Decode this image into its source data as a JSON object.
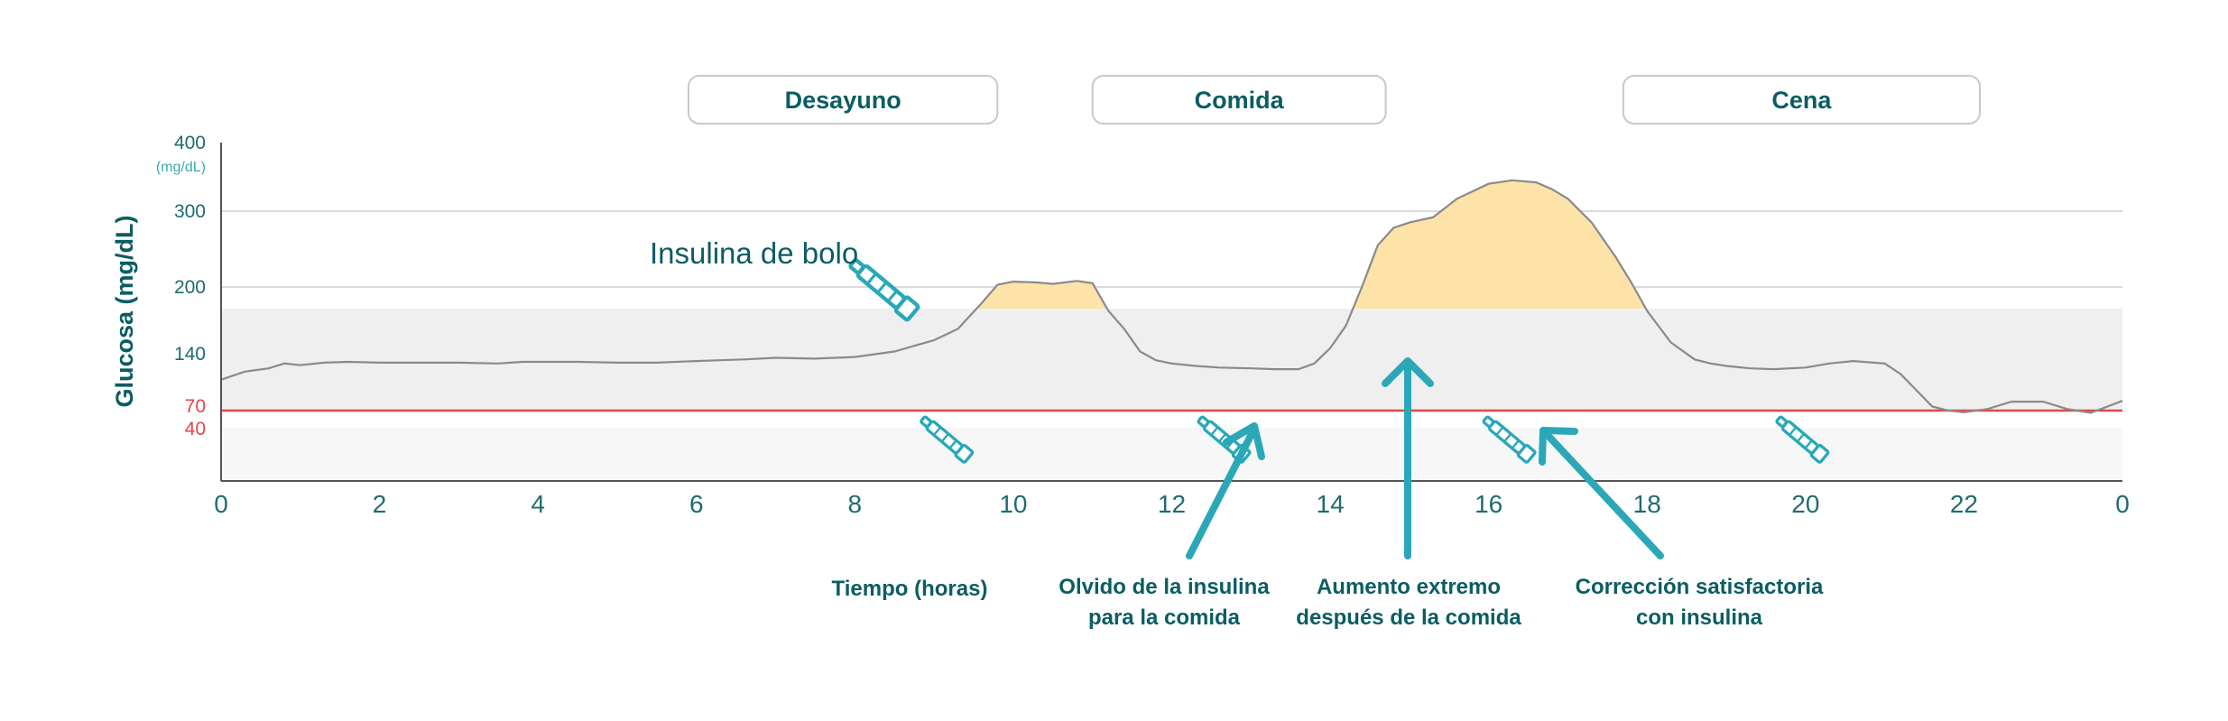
{
  "chart_data": {
    "type": "line",
    "title": "",
    "xlabel": "Tiempo (horas)",
    "ylabel": "Glucosa (mg/dL)",
    "y_unit": "(mg/dL)",
    "x_ticks": [
      "0",
      "2",
      "4",
      "6",
      "8",
      "10",
      "12",
      "14",
      "16",
      "18",
      "20",
      "22",
      "0"
    ],
    "y_ticks": [
      {
        "value": 400,
        "label": "400"
      },
      {
        "value": 300,
        "label": "300"
      },
      {
        "value": 200,
        "label": "200"
      },
      {
        "value": 140,
        "label": "140"
      },
      {
        "value": 70,
        "label": "70"
      },
      {
        "value": 40,
        "label": "40"
      }
    ],
    "target_range": [
      70,
      180
    ],
    "low_threshold": 70,
    "grid": true,
    "series": [
      {
        "x": [
          0,
          0.3,
          0.6,
          0.8,
          1.0,
          1.3,
          1.6,
          2.0,
          2.5,
          3.0,
          3.5,
          3.8,
          4.0,
          4.5,
          5.0,
          5.5,
          6.0,
          6.3,
          6.6,
          7.0,
          7.5,
          8.0,
          8.5,
          9.0,
          9.3,
          9.6,
          9.8,
          10.0,
          10.3,
          10.5,
          10.8,
          11.0,
          11.2,
          11.4,
          11.6,
          11.8,
          12.0,
          12.3,
          12.6,
          13.0,
          13.3,
          13.6,
          13.8,
          14.0,
          14.2,
          14.4,
          14.6,
          14.8,
          15.0,
          15.3,
          15.6,
          16.0,
          16.3,
          16.6,
          16.8,
          17.0,
          17.3,
          17.6,
          17.8,
          18.0,
          18.3,
          18.6,
          18.8,
          19.0,
          19.3,
          19.6,
          20.0,
          20.3,
          20.6,
          21.0,
          21.2,
          21.4,
          21.6,
          21.8,
          22.0,
          22.3,
          22.6,
          23.0,
          23.3,
          23.6,
          24.0
        ],
        "values": [
          108,
          118,
          122,
          128,
          126,
          129,
          130,
          129,
          129,
          129,
          128,
          130,
          130,
          130,
          129,
          129,
          131,
          132,
          133,
          135,
          134,
          136,
          142,
          152,
          162,
          185,
          203,
          207,
          206,
          204,
          208,
          205,
          178,
          162,
          142,
          132,
          128,
          125,
          123,
          122,
          121,
          121,
          128,
          145,
          165,
          200,
          255,
          278,
          285,
          292,
          318,
          340,
          345,
          342,
          332,
          318,
          285,
          240,
          206,
          178,
          150,
          133,
          128,
          125,
          122,
          121,
          123,
          128,
          131,
          128,
          115,
          95,
          75,
          70,
          67,
          72,
          81,
          81,
          72,
          66,
          82
        ]
      }
    ],
    "meals": [
      {
        "label": "Desayuno",
        "x_start": 5.9,
        "x_end": 9.8
      },
      {
        "label": "Comida",
        "x_start": 11.0,
        "x_end": 14.7
      },
      {
        "label": "Cena",
        "x_start": 17.7,
        "x_end": 22.2
      }
    ],
    "insulin_doses": [
      {
        "x": 9.0,
        "label": "Insulina de bolo"
      },
      {
        "x": 12.5,
        "label": ""
      },
      {
        "x": 16.1,
        "label": ""
      },
      {
        "x": 19.8,
        "label": ""
      }
    ],
    "annotations": [
      {
        "lines": [
          "Tiempo (horas)"
        ]
      },
      {
        "lines": [
          "Olvido de la insulina",
          "para la comida"
        ]
      },
      {
        "lines": [
          "Aumento extremo",
          "después de la comida"
        ]
      },
      {
        "lines": [
          "Corrección satisfactoria",
          "con insulina"
        ]
      }
    ],
    "colors": {
      "teal": "#0b5d63",
      "arrow": "#2aa8b8",
      "high_fill": "#fde3a8",
      "target_band": "#efefef",
      "low_band": "#f7f7f7",
      "low_line": "#e0464a",
      "curve": "#8a8a8a"
    }
  }
}
